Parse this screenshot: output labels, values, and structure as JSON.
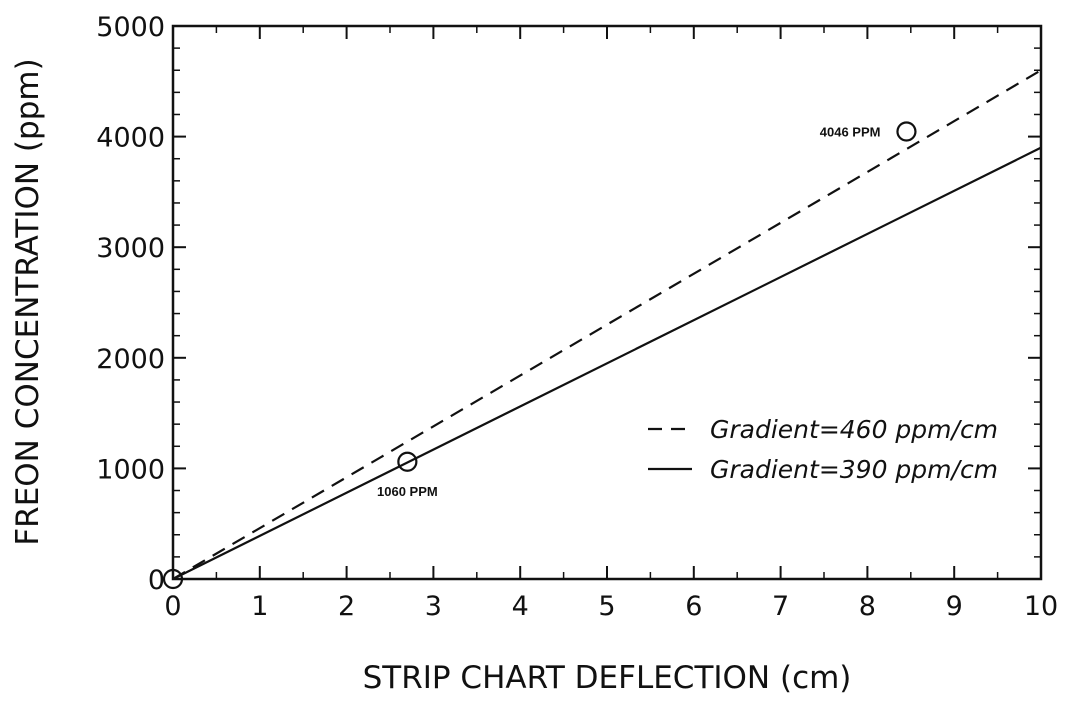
{
  "chart_data": {
    "type": "line",
    "xlabel": "STRIP CHART DEFLECTION (cm)",
    "ylabel": "FREON CONCENTRATION (ppm)",
    "xlim": [
      0,
      10
    ],
    "ylim": [
      0,
      5000
    ],
    "x_ticks": [
      "0",
      "1",
      "2",
      "3",
      "4",
      "5",
      "6",
      "7",
      "8",
      "9",
      "10"
    ],
    "y_ticks": [
      "0",
      "1000",
      "2000",
      "3000",
      "4000",
      "5000"
    ],
    "grid": false,
    "legend_position": "lower-right",
    "series": [
      {
        "name": "Gradient=460 ppm/cm",
        "style": "dashed",
        "x": [
          0,
          10
        ],
        "y": [
          0,
          4600
        ]
      },
      {
        "name": "Gradient=390 ppm/cm",
        "style": "solid",
        "x": [
          0,
          10
        ],
        "y": [
          0,
          3900
        ]
      }
    ],
    "points": [
      {
        "x": 0,
        "y": 0,
        "label": ""
      },
      {
        "x": 2.7,
        "y": 1060,
        "label": "1060 PPM"
      },
      {
        "x": 8.45,
        "y": 4046,
        "label": "4046 PPM"
      }
    ]
  }
}
